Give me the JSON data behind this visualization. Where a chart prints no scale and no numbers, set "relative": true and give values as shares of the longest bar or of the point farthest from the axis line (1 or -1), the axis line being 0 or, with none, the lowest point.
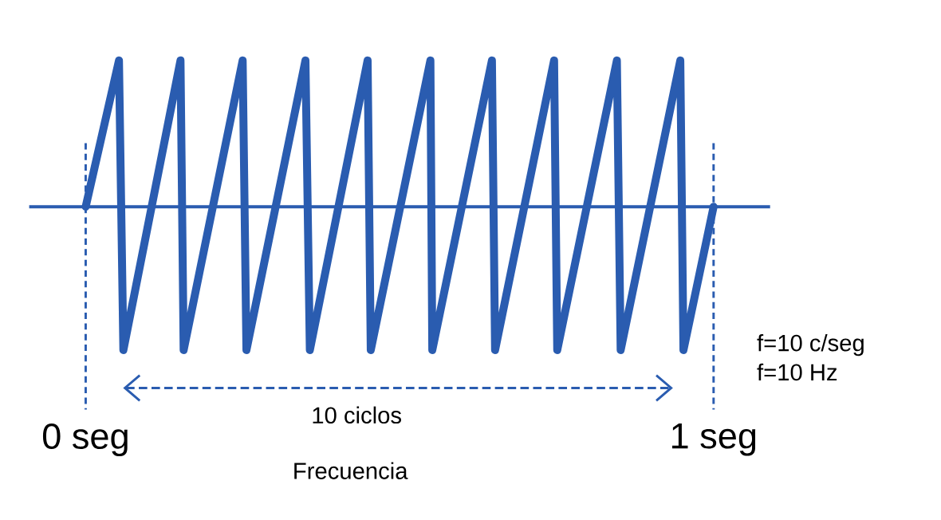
{
  "chart_data": {
    "type": "line",
    "relative": true,
    "color": "#2a5cb0",
    "line_style": "solid",
    "marker": "none",
    "x": [
      0,
      0.053,
      0.06,
      0.151,
      0.156,
      0.25,
      0.256,
      0.35,
      0.357,
      0.449,
      0.454,
      0.549,
      0.552,
      0.647,
      0.652,
      0.746,
      0.751,
      0.846,
      0.852,
      0.947,
      0.952,
      1.0
    ],
    "values": [
      0,
      1,
      -0.98,
      1,
      -0.98,
      1,
      -0.98,
      1,
      -0.98,
      1,
      -0.98,
      1,
      -0.98,
      1,
      -0.98,
      1,
      -0.98,
      1,
      -0.98,
      1,
      -0.98,
      0
    ],
    "xlim": [
      -0.09,
      1.09
    ],
    "xticks": [
      {
        "value": 0,
        "label": "0 seg"
      },
      {
        "value": 1,
        "label": "1 seg"
      }
    ],
    "ref_lines": [
      {
        "axis": "y",
        "value": 0,
        "color": "#2a5cb0",
        "line_style": "solid"
      },
      {
        "axis": "x",
        "value": 0,
        "color": "#2a5cb0",
        "line_style": "dashed"
      },
      {
        "axis": "x",
        "value": 1,
        "color": "#2a5cb0",
        "line_style": "dashed"
      }
    ],
    "annotations": [
      "10 ciclos",
      "Frecuencia",
      "f=10 c/seg",
      "f=10 Hz"
    ]
  }
}
